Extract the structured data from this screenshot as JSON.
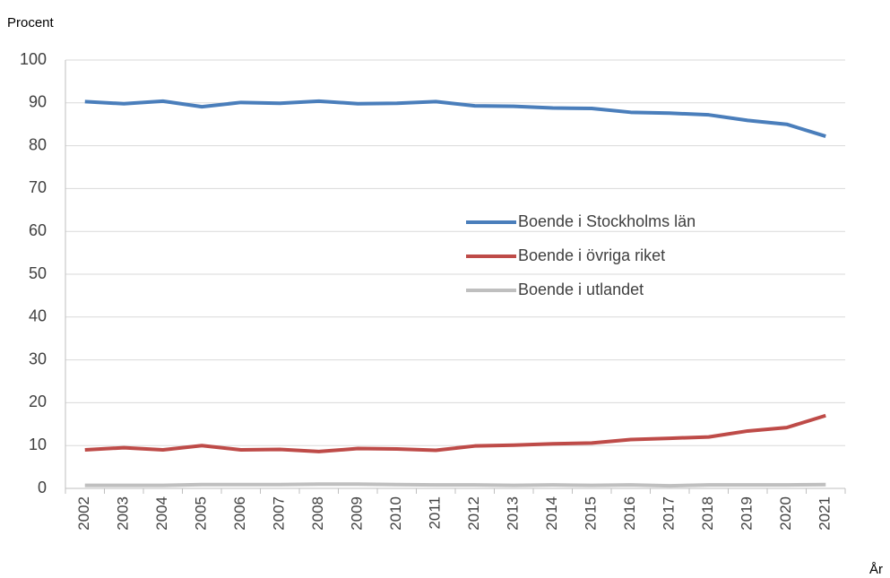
{
  "chart_data": {
    "type": "line",
    "y_label": "Procent",
    "x_label": "År",
    "categories": [
      "2002",
      "2003",
      "2004",
      "2005",
      "2006",
      "2007",
      "2008",
      "2009",
      "2010",
      "2011",
      "2012",
      "2013",
      "2014",
      "2015",
      "2016",
      "2017",
      "2018",
      "2019",
      "2020",
      "2021"
    ],
    "series": [
      {
        "name": "Boende i Stockholms län",
        "color": "#4a7ebb",
        "values": [
          90.3,
          89.8,
          90.4,
          89.1,
          90.1,
          89.9,
          90.4,
          89.8,
          89.9,
          90.3,
          89.3,
          89.2,
          88.8,
          88.7,
          87.8,
          87.6,
          87.2,
          85.9,
          85.0,
          82.2
        ]
      },
      {
        "name": "Boende i övriga riket",
        "color": "#be4b48",
        "values": [
          9.0,
          9.5,
          9.0,
          10.0,
          9.0,
          9.1,
          8.6,
          9.3,
          9.2,
          8.9,
          9.9,
          10.1,
          10.4,
          10.6,
          11.4,
          11.7,
          12.0,
          13.4,
          14.2,
          17.0
        ]
      },
      {
        "name": "Boende i utlandet",
        "color": "#bfbfbf",
        "values": [
          0.7,
          0.7,
          0.7,
          0.9,
          0.9,
          0.9,
          1.0,
          1.0,
          0.9,
          0.8,
          0.8,
          0.7,
          0.8,
          0.7,
          0.8,
          0.6,
          0.8,
          0.8,
          0.8,
          0.9
        ]
      }
    ],
    "ylim": [
      0,
      100
    ],
    "yticks": [
      0,
      10,
      20,
      30,
      40,
      50,
      60,
      70,
      80,
      90,
      100
    ],
    "grid": true,
    "legend": "right"
  }
}
